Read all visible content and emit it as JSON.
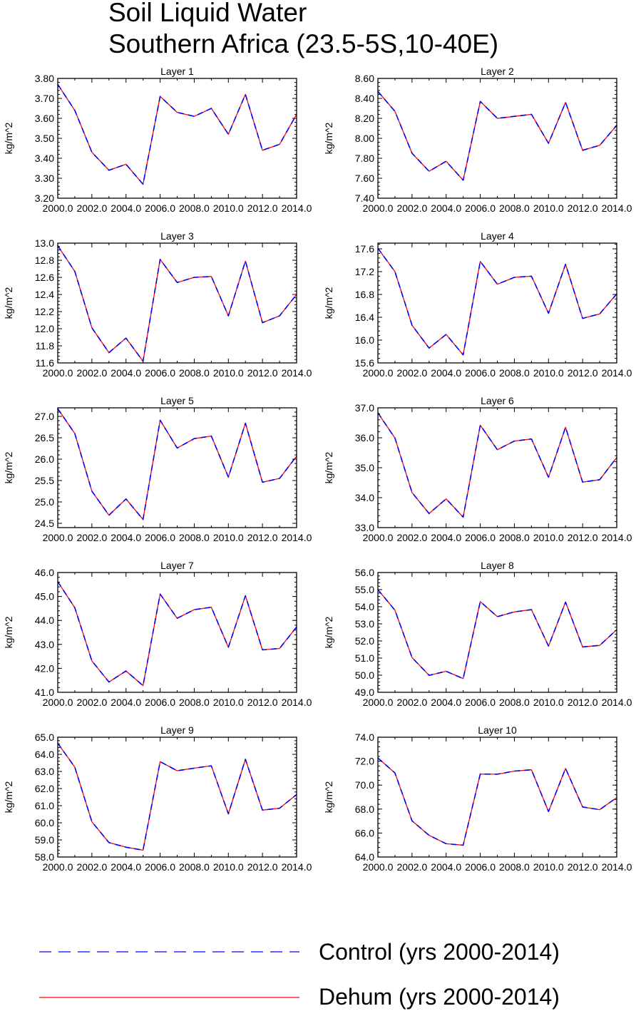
{
  "title_lines": [
    "Soil Liquid Water",
    "Southern Africa (23.5-5S,10-40E)"
  ],
  "legend": [
    {
      "label": "Control (yrs 2000-2014)",
      "color": "#0000ff",
      "style": "dashed"
    },
    {
      "label": "Dehum (yrs 2000-2014)",
      "color": "#ff0000",
      "style": "solid"
    }
  ],
  "chart_data": [
    {
      "type": "line",
      "title": "Layer 1",
      "ylabel": "kg/m^2",
      "x": [
        2000,
        2001,
        2002,
        2003,
        2004,
        2005,
        2006,
        2007,
        2008,
        2009,
        2010,
        2011,
        2012,
        2013,
        2014
      ],
      "xlim": [
        2000,
        2014
      ],
      "xticks": [
        "2000.0",
        "2002.0",
        "2004.0",
        "2006.0",
        "2008.0",
        "2010.0",
        "2012.0",
        "2014.0"
      ],
      "ylim": [
        3.2,
        3.8
      ],
      "yticks": [
        "3.20",
        "3.30",
        "3.40",
        "3.50",
        "3.60",
        "3.70",
        "3.80"
      ],
      "series": [
        {
          "name": "Control (yrs 2000-2014)",
          "values": [
            3.77,
            3.64,
            3.43,
            3.34,
            3.37,
            3.27,
            3.71,
            3.63,
            3.61,
            3.65,
            3.52,
            3.72,
            3.44,
            3.47,
            3.62
          ]
        },
        {
          "name": "Dehum (yrs 2000-2014)",
          "values": [
            3.77,
            3.64,
            3.43,
            3.34,
            3.37,
            3.27,
            3.71,
            3.63,
            3.61,
            3.65,
            3.52,
            3.72,
            3.44,
            3.47,
            3.62
          ]
        }
      ]
    },
    {
      "type": "line",
      "title": "Layer 2",
      "ylabel": "kg/m^2",
      "x": [
        2000,
        2001,
        2002,
        2003,
        2004,
        2005,
        2006,
        2007,
        2008,
        2009,
        2010,
        2011,
        2012,
        2013,
        2014
      ],
      "xlim": [
        2000,
        2014
      ],
      "xticks": [
        "2000.0",
        "2002.0",
        "2004.0",
        "2006.0",
        "2008.0",
        "2010.0",
        "2012.0",
        "2014.0"
      ],
      "ylim": [
        7.4,
        8.6
      ],
      "yticks": [
        "7.40",
        "7.60",
        "7.80",
        "8.00",
        "8.20",
        "8.40",
        "8.60"
      ],
      "series": [
        {
          "name": "Control (yrs 2000-2014)",
          "values": [
            8.47,
            8.27,
            7.85,
            7.67,
            7.77,
            7.58,
            8.37,
            8.2,
            8.22,
            8.24,
            7.95,
            8.36,
            7.88,
            7.93,
            8.13
          ]
        },
        {
          "name": "Dehum (yrs 2000-2014)",
          "values": [
            8.47,
            8.27,
            7.85,
            7.67,
            7.77,
            7.58,
            8.37,
            8.2,
            8.22,
            8.24,
            7.95,
            8.36,
            7.88,
            7.93,
            8.13
          ]
        }
      ]
    },
    {
      "type": "line",
      "title": "Layer 3",
      "ylabel": "kg/m^2",
      "x": [
        2000,
        2001,
        2002,
        2003,
        2004,
        2005,
        2006,
        2007,
        2008,
        2009,
        2010,
        2011,
        2012,
        2013,
        2014
      ],
      "xlim": [
        2000,
        2014
      ],
      "xticks": [
        "2000.0",
        "2002.0",
        "2004.0",
        "2006.0",
        "2008.0",
        "2010.0",
        "2012.0",
        "2014.0"
      ],
      "ylim": [
        11.6,
        13.0
      ],
      "yticks": [
        "11.6",
        "11.8",
        "12.0",
        "12.2",
        "12.4",
        "12.6",
        "12.8",
        "13.0"
      ],
      "series": [
        {
          "name": "Control (yrs 2000-2014)",
          "values": [
            12.97,
            12.67,
            12.01,
            11.72,
            11.89,
            11.62,
            12.81,
            12.54,
            12.6,
            12.61,
            12.15,
            12.79,
            12.07,
            12.15,
            12.4
          ]
        },
        {
          "name": "Dehum (yrs 2000-2014)",
          "values": [
            12.97,
            12.67,
            12.01,
            11.72,
            11.89,
            11.62,
            12.81,
            12.54,
            12.6,
            12.61,
            12.15,
            12.79,
            12.07,
            12.15,
            12.4
          ]
        }
      ]
    },
    {
      "type": "line",
      "title": "Layer 4",
      "ylabel": "kg/m^2",
      "x": [
        2000,
        2001,
        2002,
        2003,
        2004,
        2005,
        2006,
        2007,
        2008,
        2009,
        2010,
        2011,
        2012,
        2013,
        2014
      ],
      "xlim": [
        2000,
        2014
      ],
      "xticks": [
        "2000.0",
        "2002.0",
        "2004.0",
        "2006.0",
        "2008.0",
        "2010.0",
        "2012.0",
        "2014.0"
      ],
      "ylim": [
        15.6,
        17.7
      ],
      "yticks": [
        "15.6",
        "16.0",
        "16.4",
        "16.8",
        "17.2",
        "17.6"
      ],
      "series": [
        {
          "name": "Control (yrs 2000-2014)",
          "values": [
            17.61,
            17.2,
            16.26,
            15.86,
            16.1,
            15.74,
            17.38,
            16.98,
            17.1,
            17.12,
            16.47,
            17.33,
            16.38,
            16.46,
            16.81
          ]
        },
        {
          "name": "Dehum (yrs 2000-2014)",
          "values": [
            17.61,
            17.2,
            16.26,
            15.86,
            16.1,
            15.74,
            17.38,
            16.98,
            17.1,
            17.12,
            16.47,
            17.33,
            16.38,
            16.46,
            16.81
          ]
        }
      ]
    },
    {
      "type": "line",
      "title": "Layer 5",
      "ylabel": "kg/m^2",
      "x": [
        2000,
        2001,
        2002,
        2003,
        2004,
        2005,
        2006,
        2007,
        2008,
        2009,
        2010,
        2011,
        2012,
        2013,
        2014
      ],
      "xlim": [
        2000,
        2014
      ],
      "xticks": [
        "2000.0",
        "2002.0",
        "2004.0",
        "2006.0",
        "2008.0",
        "2010.0",
        "2012.0",
        "2014.0"
      ],
      "ylim": [
        24.4,
        27.2
      ],
      "yticks": [
        "24.5",
        "25.0",
        "25.5",
        "26.0",
        "26.5",
        "27.0"
      ],
      "series": [
        {
          "name": "Control (yrs 2000-2014)",
          "values": [
            27.18,
            26.6,
            25.25,
            24.69,
            25.07,
            24.59,
            26.91,
            26.26,
            26.48,
            26.54,
            25.58,
            26.84,
            25.46,
            25.55,
            26.07
          ]
        },
        {
          "name": "Dehum (yrs 2000-2014)",
          "values": [
            27.18,
            26.6,
            25.25,
            24.69,
            25.07,
            24.59,
            26.91,
            26.26,
            26.48,
            26.54,
            25.58,
            26.84,
            25.46,
            25.55,
            26.07
          ]
        }
      ]
    },
    {
      "type": "line",
      "title": "Layer 6",
      "ylabel": "kg/m^2",
      "x": [
        2000,
        2001,
        2002,
        2003,
        2004,
        2005,
        2006,
        2007,
        2008,
        2009,
        2010,
        2011,
        2012,
        2013,
        2014
      ],
      "xlim": [
        2000,
        2014
      ],
      "xticks": [
        "2000.0",
        "2002.0",
        "2004.0",
        "2006.0",
        "2008.0",
        "2010.0",
        "2012.0",
        "2014.0"
      ],
      "ylim": [
        33.0,
        37.0
      ],
      "yticks": [
        "33.0",
        "34.0",
        "35.0",
        "36.0",
        "37.0"
      ],
      "series": [
        {
          "name": "Control (yrs 2000-2014)",
          "values": [
            36.83,
            35.99,
            34.17,
            33.47,
            33.96,
            33.35,
            36.42,
            35.6,
            35.89,
            35.96,
            34.68,
            36.35,
            34.52,
            34.6,
            35.34
          ]
        },
        {
          "name": "Dehum (yrs 2000-2014)",
          "values": [
            36.83,
            35.99,
            34.17,
            33.47,
            33.96,
            33.35,
            36.42,
            35.6,
            35.89,
            35.96,
            34.68,
            36.35,
            34.52,
            34.6,
            35.34
          ]
        }
      ]
    },
    {
      "type": "line",
      "title": "Layer 7",
      "ylabel": "kg/m^2",
      "x": [
        2000,
        2001,
        2002,
        2003,
        2004,
        2005,
        2006,
        2007,
        2008,
        2009,
        2010,
        2011,
        2012,
        2013,
        2014
      ],
      "xlim": [
        2000,
        2014
      ],
      "xticks": [
        "2000.0",
        "2002.0",
        "2004.0",
        "2006.0",
        "2008.0",
        "2010.0",
        "2012.0",
        "2014.0"
      ],
      "ylim": [
        41.0,
        46.0
      ],
      "yticks": [
        "41.0",
        "42.0",
        "43.0",
        "44.0",
        "45.0",
        "46.0"
      ],
      "series": [
        {
          "name": "Control (yrs 2000-2014)",
          "values": [
            45.62,
            44.53,
            42.31,
            41.43,
            41.89,
            41.28,
            45.1,
            44.09,
            44.45,
            44.55,
            42.88,
            45.03,
            42.77,
            42.83,
            43.73
          ]
        },
        {
          "name": "Dehum (yrs 2000-2014)",
          "values": [
            45.62,
            44.53,
            42.31,
            41.43,
            41.89,
            41.28,
            45.1,
            44.09,
            44.45,
            44.55,
            42.88,
            45.03,
            42.77,
            42.83,
            43.73
          ]
        }
      ]
    },
    {
      "type": "line",
      "title": "Layer 8",
      "ylabel": "kg/m^2",
      "x": [
        2000,
        2001,
        2002,
        2003,
        2004,
        2005,
        2006,
        2007,
        2008,
        2009,
        2010,
        2011,
        2012,
        2013,
        2014
      ],
      "xlim": [
        2000,
        2014
      ],
      "xticks": [
        "2000.0",
        "2002.0",
        "2004.0",
        "2006.0",
        "2008.0",
        "2010.0",
        "2012.0",
        "2014.0"
      ],
      "ylim": [
        49.0,
        56.0
      ],
      "yticks": [
        "49.0",
        "50.0",
        "51.0",
        "52.0",
        "53.0",
        "54.0",
        "55.0",
        "56.0"
      ],
      "series": [
        {
          "name": "Control (yrs 2000-2014)",
          "values": [
            55.0,
            53.8,
            51.03,
            49.99,
            50.23,
            49.8,
            54.3,
            53.42,
            53.7,
            53.83,
            51.7,
            54.27,
            51.65,
            51.74,
            52.66
          ]
        },
        {
          "name": "Dehum (yrs 2000-2014)",
          "values": [
            55.0,
            53.8,
            51.03,
            49.99,
            50.23,
            49.8,
            54.3,
            53.42,
            53.7,
            53.83,
            51.7,
            54.27,
            51.65,
            51.74,
            52.66
          ]
        }
      ]
    },
    {
      "type": "line",
      "title": "Layer 9",
      "ylabel": "kg/m^2",
      "x": [
        2000,
        2001,
        2002,
        2003,
        2004,
        2005,
        2006,
        2007,
        2008,
        2009,
        2010,
        2011,
        2012,
        2013,
        2014
      ],
      "xlim": [
        2000,
        2014
      ],
      "xticks": [
        "2000.0",
        "2002.0",
        "2004.0",
        "2006.0",
        "2008.0",
        "2010.0",
        "2012.0",
        "2014.0"
      ],
      "ylim": [
        58.0,
        65.0
      ],
      "yticks": [
        "58.0",
        "59.0",
        "60.0",
        "61.0",
        "62.0",
        "63.0",
        "64.0",
        "65.0"
      ],
      "series": [
        {
          "name": "Control (yrs 2000-2014)",
          "values": [
            64.65,
            63.25,
            60.06,
            58.84,
            58.57,
            58.4,
            63.57,
            63.04,
            63.19,
            63.33,
            60.52,
            63.71,
            60.74,
            60.85,
            61.65
          ]
        },
        {
          "name": "Dehum (yrs 2000-2014)",
          "values": [
            64.65,
            63.25,
            60.06,
            58.84,
            58.57,
            58.4,
            63.57,
            63.04,
            63.19,
            63.33,
            60.52,
            63.71,
            60.74,
            60.85,
            61.65
          ]
        }
      ]
    },
    {
      "type": "line",
      "title": "Layer 10",
      "ylabel": "kg/m^2",
      "x": [
        2000,
        2001,
        2002,
        2003,
        2004,
        2005,
        2006,
        2007,
        2008,
        2009,
        2010,
        2011,
        2012,
        2013,
        2014
      ],
      "xlim": [
        2000,
        2014
      ],
      "xticks": [
        "2000.0",
        "2002.0",
        "2004.0",
        "2006.0",
        "2008.0",
        "2010.0",
        "2012.0",
        "2014.0"
      ],
      "ylim": [
        64.0,
        74.0
      ],
      "yticks": [
        "64.0",
        "66.0",
        "68.0",
        "70.0",
        "72.0",
        "74.0"
      ],
      "series": [
        {
          "name": "Control (yrs 2000-2014)",
          "values": [
            72.27,
            71.02,
            67.02,
            65.81,
            65.11,
            64.99,
            70.93,
            70.91,
            71.17,
            71.28,
            67.79,
            71.39,
            68.18,
            67.95,
            68.96
          ]
        },
        {
          "name": "Dehum (yrs 2000-2014)",
          "values": [
            72.27,
            71.02,
            67.02,
            65.81,
            65.11,
            64.99,
            70.93,
            70.91,
            71.17,
            71.28,
            67.79,
            71.39,
            68.18,
            67.95,
            68.96
          ]
        }
      ]
    }
  ]
}
